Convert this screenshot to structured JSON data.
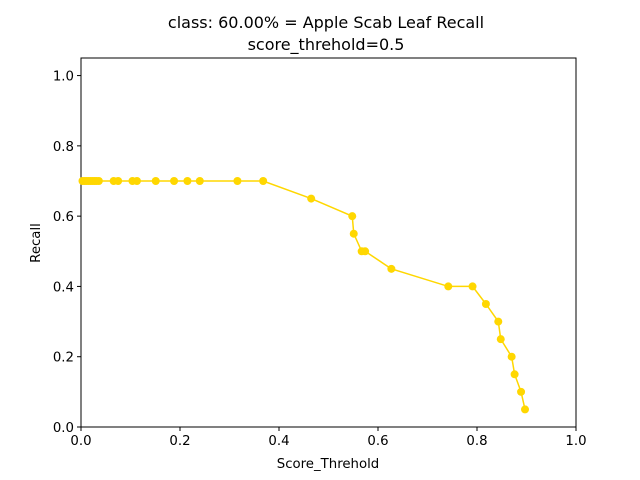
{
  "chart_data": {
    "type": "line",
    "title_line1": "class: 60.00% = Apple Scab Leaf Recall",
    "title_line2": "score_threhold=0.5",
    "xlabel": "Score_Threhold",
    "ylabel": "Recall",
    "xlim": [
      0.0,
      1.0
    ],
    "ylim": [
      0.0,
      1.05
    ],
    "xticks": [
      "0.0",
      "0.2",
      "0.4",
      "0.6",
      "0.8",
      "1.0"
    ],
    "yticks": [
      "0.0",
      "0.2",
      "0.4",
      "0.6",
      "0.8",
      "1.0"
    ],
    "grid": false,
    "legend": "none",
    "color": "#FFD700",
    "series": [
      {
        "x": [
          0.003,
          0.007,
          0.011,
          0.015,
          0.019,
          0.023,
          0.027,
          0.031,
          0.036,
          0.066,
          0.075,
          0.104,
          0.113,
          0.151,
          0.188,
          0.215,
          0.24,
          0.316,
          0.368,
          0.465,
          0.548,
          0.551,
          0.567,
          0.574,
          0.627,
          0.742,
          0.791,
          0.818,
          0.843,
          0.848,
          0.87,
          0.876,
          0.889,
          0.897
        ],
        "y": [
          0.7,
          0.7,
          0.7,
          0.7,
          0.7,
          0.7,
          0.7,
          0.7,
          0.7,
          0.7,
          0.7,
          0.7,
          0.7,
          0.7,
          0.7,
          0.7,
          0.7,
          0.7,
          0.7,
          0.65,
          0.6,
          0.55,
          0.5,
          0.5,
          0.45,
          0.4,
          0.4,
          0.35,
          0.3,
          0.25,
          0.2,
          0.15,
          0.1,
          0.05
        ]
      }
    ]
  }
}
